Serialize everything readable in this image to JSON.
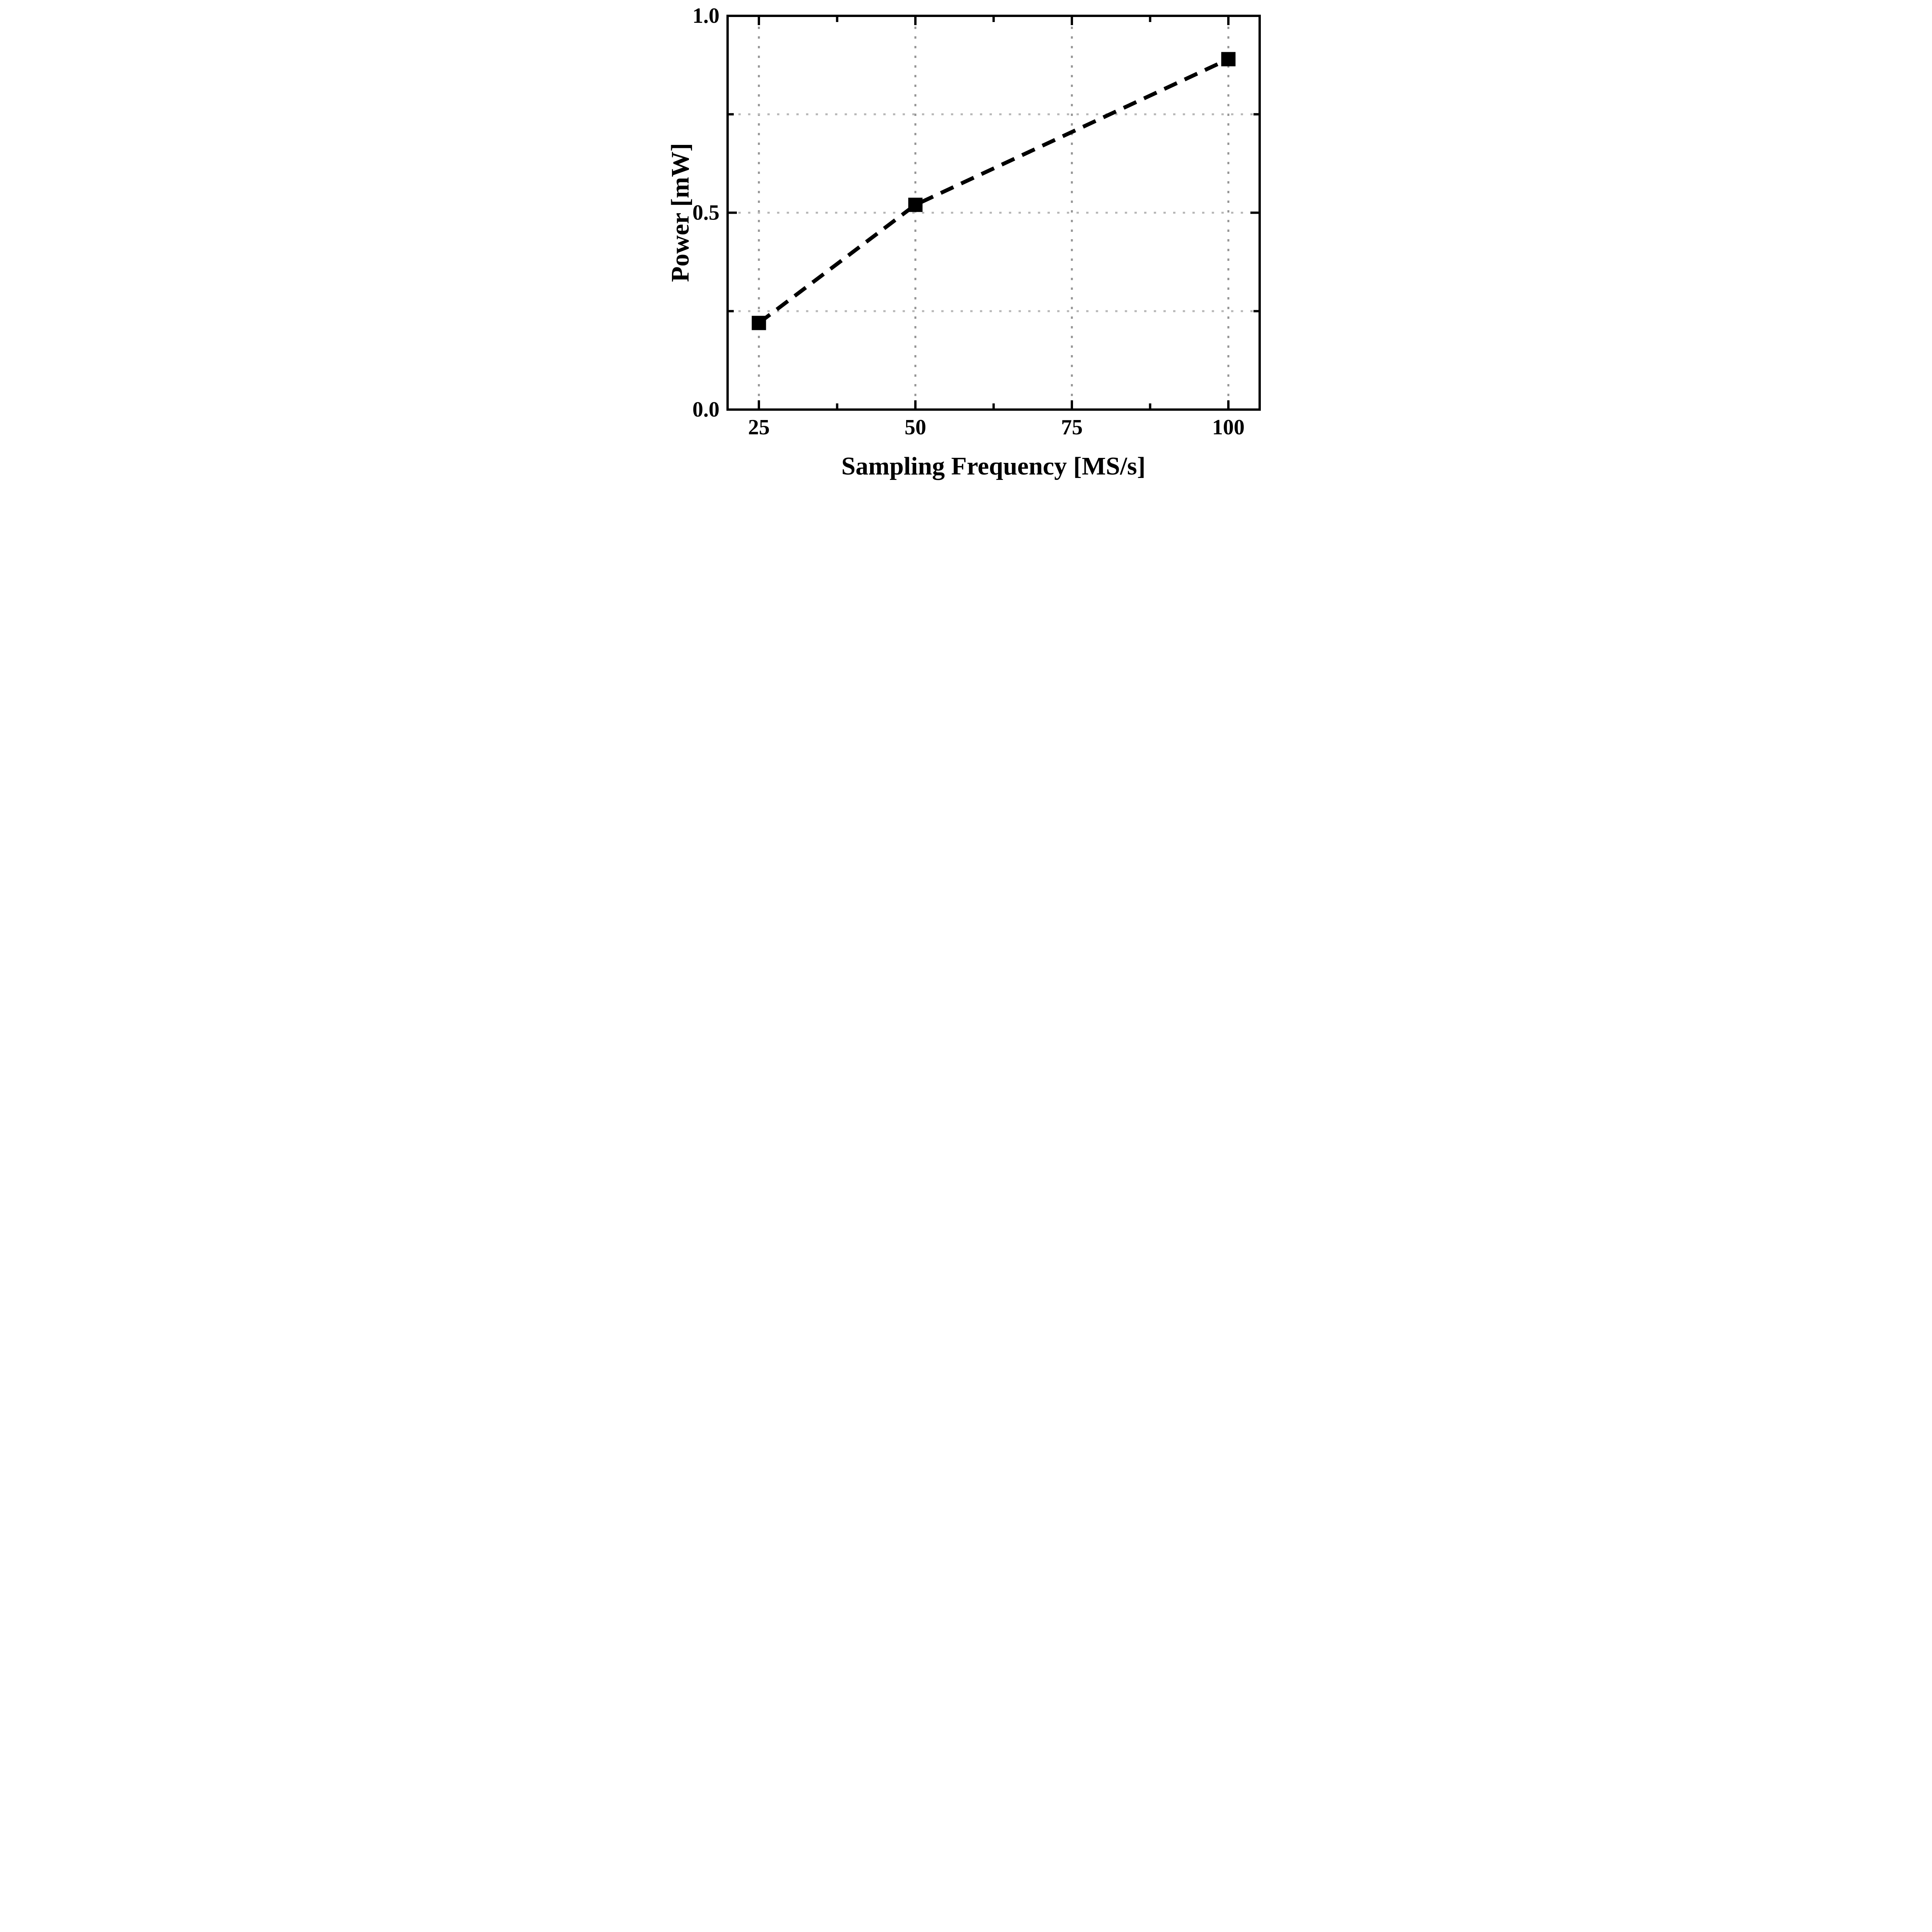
{
  "figure": {
    "background_color": "#ffffff",
    "frame_color": "#000000",
    "data_color": "#000000",
    "grid_color_vertical": "#949494",
    "grid_color_horizontal": "#b8b8b8"
  },
  "chart_data": {
    "type": "line",
    "title": "",
    "xlabel": "Sampling Frequency [MS/s]",
    "ylabel": "Power [mW]",
    "x": [
      25,
      50,
      100
    ],
    "series": [
      {
        "name": "Power",
        "values": [
          0.22,
          0.52,
          0.89
        ]
      }
    ],
    "xlim": [
      20,
      105
    ],
    "ylim": [
      0.0,
      1.0
    ],
    "x_major_ticks": [
      25,
      50,
      75,
      100
    ],
    "x_minor_ticks": [
      37.5,
      62.5,
      87.5
    ],
    "y_major_ticks": [
      0.0,
      0.5,
      1.0
    ],
    "y_minor_ticks": [
      0.25,
      0.75
    ],
    "x_tick_labels": [
      "25",
      "50",
      "75",
      "100"
    ],
    "y_tick_labels": [
      "0.0",
      "0.5",
      "1.0"
    ],
    "grid_x": [
      25,
      50,
      75,
      100
    ],
    "grid_y": [
      0.25,
      0.5,
      0.75
    ],
    "grid_style": "dotted",
    "line_style": "dashed",
    "marker": "filled-square",
    "legend": "none"
  }
}
